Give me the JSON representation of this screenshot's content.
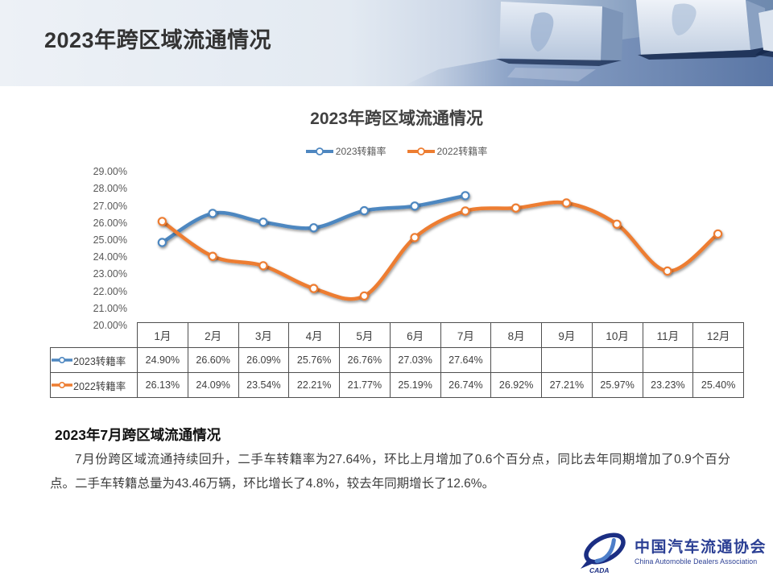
{
  "header": {
    "title": "2023年跨区域流通情况"
  },
  "chart_data": {
    "type": "line",
    "title": "2023年跨区域流通情况",
    "categories": [
      "1月",
      "2月",
      "3月",
      "4月",
      "5月",
      "6月",
      "7月",
      "8月",
      "9月",
      "10月",
      "11月",
      "12月"
    ],
    "series": [
      {
        "name": "2023转籍率",
        "color": "#4E87C0",
        "values": [
          24.9,
          26.6,
          26.09,
          25.76,
          26.76,
          27.03,
          27.64,
          null,
          null,
          null,
          null,
          null
        ]
      },
      {
        "name": "2022转籍率",
        "color": "#ED7D31",
        "values": [
          26.13,
          24.09,
          23.54,
          22.21,
          21.77,
          25.19,
          26.74,
          26.92,
          27.21,
          25.97,
          23.23,
          25.4
        ]
      }
    ],
    "ylim": [
      20,
      29
    ],
    "yticks": [
      "29.00%",
      "28.00%",
      "27.00%",
      "26.00%",
      "25.00%",
      "24.00%",
      "23.00%",
      "22.00%",
      "21.00%",
      "20.00%"
    ],
    "grid": false,
    "smooth": true,
    "markers": true,
    "legend_position": "top"
  },
  "table": {
    "columns": [
      "1月",
      "2月",
      "3月",
      "4月",
      "5月",
      "6月",
      "7月",
      "8月",
      "9月",
      "10月",
      "11月",
      "12月"
    ],
    "rows": [
      {
        "label": "2023转籍率",
        "color": "#4E87C0",
        "values": [
          "24.90%",
          "26.60%",
          "26.09%",
          "25.76%",
          "26.76%",
          "27.03%",
          "27.64%",
          "",
          "",
          "",
          "",
          ""
        ]
      },
      {
        "label": "2022转籍率",
        "color": "#ED7D31",
        "values": [
          "26.13%",
          "24.09%",
          "23.54%",
          "22.21%",
          "21.77%",
          "25.19%",
          "26.74%",
          "26.92%",
          "27.21%",
          "25.97%",
          "23.23%",
          "25.40%"
        ]
      }
    ]
  },
  "summary": {
    "title": "2023年7月跨区域流通情况",
    "body": "7月份跨区域流通持续回升，二手车转籍率为27.64%，环比上月增加了0.6个百分点，同比去年同期增加了0.9个百分点。二手车转籍总量为43.46万辆，环比增长了4.8%，较去年同期增长了12.6%。"
  },
  "footer_logo": {
    "name_cn": "中国汽车流通协会",
    "name_en": "China Automobile Dealers Association",
    "abbr": "CADA",
    "color": "#2B3F94"
  }
}
